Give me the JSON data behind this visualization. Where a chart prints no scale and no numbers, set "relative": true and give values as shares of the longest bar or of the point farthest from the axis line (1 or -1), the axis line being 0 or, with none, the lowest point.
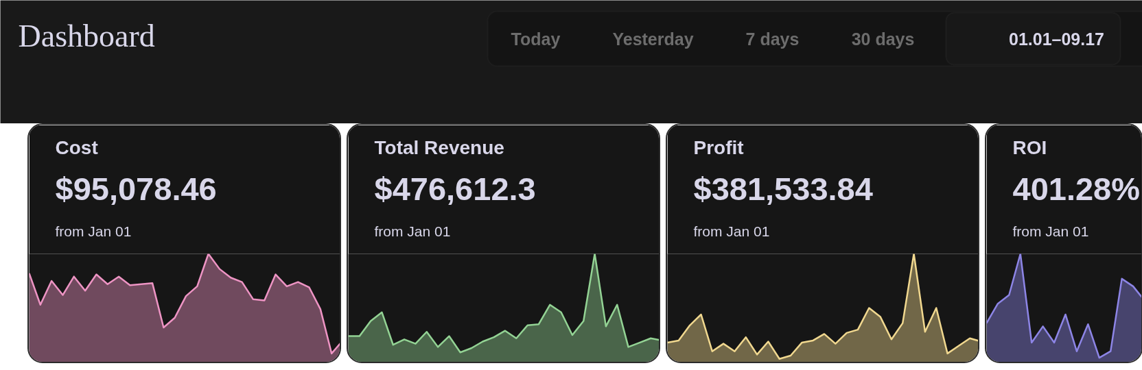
{
  "chart_data": [
    {
      "type": "other",
      "title": "Dashboard",
      "annotations": [
        "Today",
        "Yesterday",
        "7 days",
        "30 days",
        "01.01–09.17"
      ]
    },
    {
      "type": "area",
      "title": "Cost",
      "subtitle": "$95,078.46",
      "annotations": [
        "from Jan 01"
      ],
      "relative": true,
      "color": "#ee94c4",
      "values": [
        0.82,
        0.53,
        0.75,
        0.62,
        0.79,
        0.66,
        0.81,
        0.72,
        0.79,
        0.71,
        0.72,
        0.73,
        0.32,
        0.41,
        0.61,
        0.7,
        1,
        0.86,
        0.78,
        0.74,
        0.58,
        0.57,
        0.81,
        0.7,
        0.74,
        0.69,
        0.49,
        0.08,
        0.2
      ]
    },
    {
      "type": "area",
      "title": "Total Revenue",
      "subtitle": "$476,612.3",
      "annotations": [
        "from Jan 01"
      ],
      "relative": true,
      "color": "#93d394",
      "values": [
        0.24,
        0.24,
        0.38,
        0.46,
        0.16,
        0.21,
        0.17,
        0.28,
        0.14,
        0.24,
        0.09,
        0.13,
        0.19,
        0.23,
        0.29,
        0.22,
        0.34,
        0.35,
        0.53,
        0.46,
        0.25,
        0.38,
        1,
        0.33,
        0.53,
        0.14,
        0.18,
        0.22,
        0.2
      ]
    },
    {
      "type": "area",
      "title": "Profit",
      "subtitle": "$381,533.84",
      "annotations": [
        "from Jan 01"
      ],
      "relative": true,
      "color": "#f1d88f",
      "values": [
        0.18,
        0.2,
        0.34,
        0.44,
        0.1,
        0.17,
        0.1,
        0.23,
        0.07,
        0.19,
        0.03,
        0.06,
        0.18,
        0.2,
        0.26,
        0.17,
        0.27,
        0.3,
        0.5,
        0.42,
        0.21,
        0.36,
        1,
        0.28,
        0.5,
        0.08,
        0.15,
        0.22,
        0.19
      ]
    },
    {
      "type": "area",
      "title": "ROI",
      "subtitle": "401.28%",
      "annotations": [
        "from Jan 01"
      ],
      "relative": true,
      "color": "#8d85e6",
      "values": [
        0.36,
        0.54,
        0.62,
        1,
        0.18,
        0.33,
        0.18,
        0.44,
        0.1,
        0.35,
        0.04,
        0.1,
        0.77,
        0.7,
        0.57
      ]
    }
  ]
}
